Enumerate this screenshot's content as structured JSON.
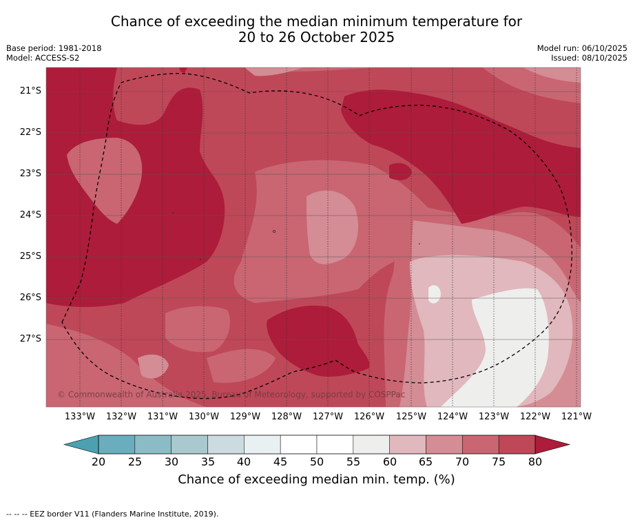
{
  "title": {
    "line1": "Chance of exceeding the median minimum temperature for",
    "line2": "20 to 26 October 2025"
  },
  "meta": {
    "base_period": "Base period: 1981-2018",
    "model": "Model: ACCESS-S2",
    "model_run": "Model run: 06/10/2025",
    "issued": "Issued: 08/10/2025"
  },
  "map": {
    "latitudes": [
      "21°S",
      "22°S",
      "23°S",
      "24°S",
      "25°S",
      "26°S",
      "27°S"
    ],
    "longitudes": [
      "133°W",
      "132°W",
      "131°W",
      "130°W",
      "129°W",
      "128°W",
      "127°W",
      "126°W",
      "125°W",
      "124°W",
      "123°W",
      "122°W",
      "121°W"
    ],
    "copyright": "© Commonwealth of Australia 2025, Bureau of Meteorology, supported by COSPPac"
  },
  "colorbar": {
    "ticks": [
      "20",
      "25",
      "30",
      "35",
      "40",
      "45",
      "50",
      "55",
      "60",
      "65",
      "70",
      "75",
      "80"
    ],
    "colors": [
      "#6aaebd",
      "#8bbcc6",
      "#aac9cf",
      "#cbdbe0",
      "#e8f0f2",
      "#ffffff",
      "#ffffff",
      "#eeeeed",
      "#e0b8bd",
      "#d48c95",
      "#c96672",
      "#be4858"
    ],
    "low_extend_color": "#4ba1b1",
    "high_extend_color": "#ad1c3a",
    "label": "Chance of exceeding median min. temp. (%)"
  },
  "legend": {
    "eez": "--  --  -- EEZ border V11 (Flanders Marine Institute, 2019)."
  }
}
